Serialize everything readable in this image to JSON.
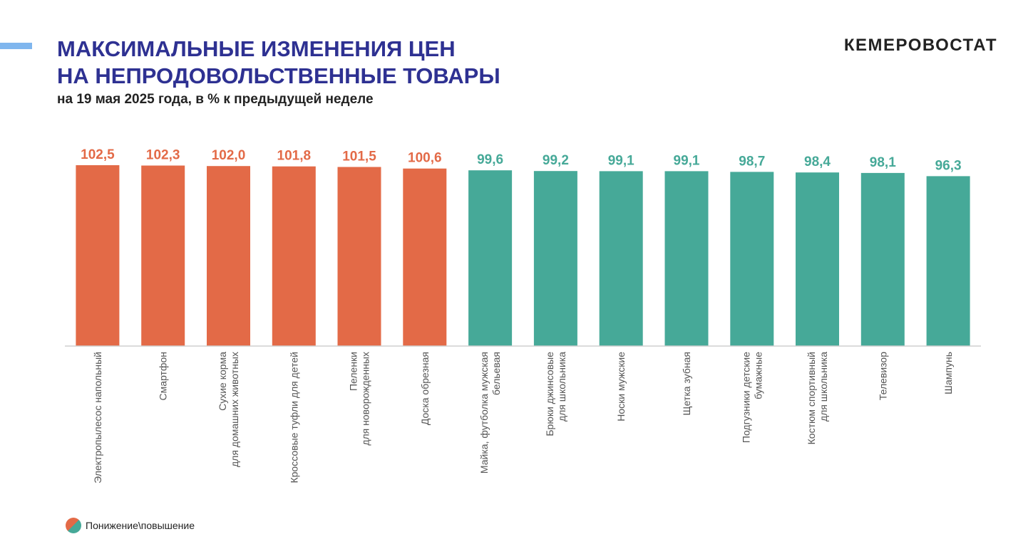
{
  "header": {
    "title_line1": "МАКСИМАЛЬНЫЕ ИЗМЕНЕНИЯ ЦЕН",
    "title_line2": "НА НЕПРОДОВОЛЬСТВЕННЫЕ ТОВАРЫ",
    "subtitle": "на 19 мая 2025 года, в % к предыдущей неделе",
    "brand": "КЕМЕРОВОСТАТ"
  },
  "legend": {
    "label": "Понижение\\повышение"
  },
  "colors": {
    "increase": "#e36a47",
    "decrease": "#46a998",
    "title": "#2e3192",
    "accent": "#7fb6ee"
  },
  "chart_data": {
    "type": "bar",
    "categories": [
      [
        "Электропылесос напольный"
      ],
      [
        "Смартфон"
      ],
      [
        "Сухие корма",
        "для домашних животных"
      ],
      [
        "Кроссовые туфли для детей"
      ],
      [
        "Пеленки",
        "для новорожденных"
      ],
      [
        "Доска обрезная"
      ],
      [
        "Майка, футболка мужская",
        "бельевая"
      ],
      [
        "Брюки джинсовые",
        "для школьника"
      ],
      [
        "Носки мужские"
      ],
      [
        "Щетка зубная"
      ],
      [
        "Подгузники детские",
        "бумажные"
      ],
      [
        "Костюм спортивный",
        "для школьника"
      ],
      [
        "Телевизор"
      ],
      [
        "Шампунь"
      ]
    ],
    "values": [
      102.5,
      102.3,
      102.0,
      101.8,
      101.5,
      100.6,
      99.6,
      99.2,
      99.1,
      99.1,
      98.7,
      98.4,
      98.1,
      96.3
    ],
    "value_labels": [
      "102,5",
      "102,3",
      "102,0",
      "101,8",
      "101,5",
      "100,6",
      "99,6",
      "99,2",
      "99,1",
      "99,1",
      "98,7",
      "98,4",
      "98,1",
      "96,3"
    ],
    "baseline": 100,
    "ylim": [
      0,
      102.5
    ],
    "grid": false,
    "legend_position": "bottom-left"
  }
}
